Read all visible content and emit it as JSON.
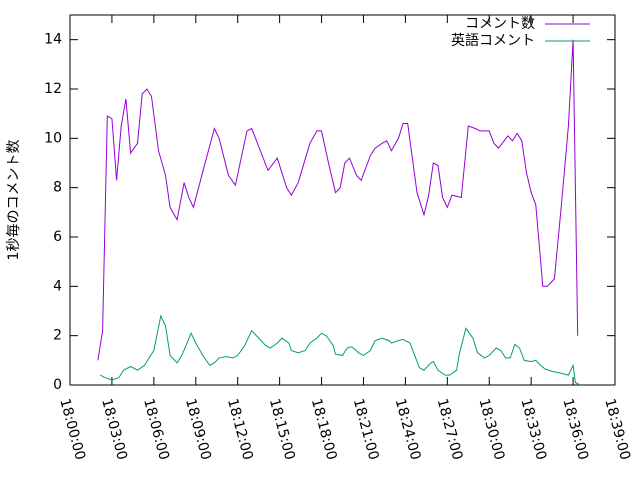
{
  "chart_data": {
    "type": "line",
    "ylabel": "1秒毎のコメント数",
    "xlim": [
      "18:00:00",
      "18:39:00"
    ],
    "xticks": [
      "18:00:00",
      "18:03:00",
      "18:06:00",
      "18:09:00",
      "18:12:00",
      "18:15:00",
      "18:18:00",
      "18:21:00",
      "18:24:00",
      "18:27:00",
      "18:30:00",
      "18:33:00",
      "18:36:00",
      "18:39:00"
    ],
    "ylim": [
      0,
      15
    ],
    "yticks": [
      0,
      2,
      4,
      6,
      8,
      10,
      12,
      14
    ],
    "legend": "top-right",
    "series": [
      {
        "name": "コメント数",
        "color": "#9400d3",
        "x": [
          "18:02:00",
          "18:02:20",
          "18:02:40",
          "18:03:00",
          "18:03:20",
          "18:03:40",
          "18:04:00",
          "18:04:20",
          "18:04:50",
          "18:05:10",
          "18:05:30",
          "18:05:50",
          "18:06:20",
          "18:06:50",
          "18:07:10",
          "18:07:40",
          "18:08:10",
          "18:08:30",
          "18:08:50",
          "18:09:40",
          "18:10:20",
          "18:10:40",
          "18:11:20",
          "18:11:50",
          "18:12:40",
          "18:13:00",
          "18:14:10",
          "18:14:50",
          "18:15:30",
          "18:15:50",
          "18:16:20",
          "18:17:10",
          "18:17:40",
          "18:18:00",
          "18:18:30",
          "18:19:00",
          "18:19:20",
          "18:19:40",
          "18:20:00",
          "18:20:30",
          "18:20:50",
          "18:21:30",
          "18:21:50",
          "18:22:20",
          "18:22:40",
          "18:23:00",
          "18:23:30",
          "18:23:50",
          "18:24:10",
          "18:24:50",
          "18:25:20",
          "18:25:40",
          "18:26:00",
          "18:26:20",
          "18:26:40",
          "18:27:00",
          "18:27:20",
          "18:28:00",
          "18:28:30",
          "18:29:00",
          "18:29:20",
          "18:30:00",
          "18:30:20",
          "18:30:40",
          "18:31:20",
          "18:31:40",
          "18:32:00",
          "18:32:20",
          "18:32:40",
          "18:33:00",
          "18:33:20",
          "18:33:50",
          "18:34:10",
          "18:34:40",
          "18:35:10",
          "18:35:40",
          "18:36:00",
          "18:36:20"
        ],
        "values": [
          1.0,
          2.2,
          10.9,
          10.8,
          8.3,
          10.5,
          11.6,
          9.4,
          9.8,
          11.8,
          12.0,
          11.7,
          9.5,
          8.5,
          7.2,
          6.7,
          8.2,
          7.6,
          7.2,
          9.0,
          10.4,
          10.0,
          8.5,
          8.1,
          10.3,
          10.4,
          8.7,
          9.2,
          8.0,
          7.7,
          8.2,
          9.8,
          10.3,
          10.3,
          9.0,
          7.8,
          8.0,
          9.0,
          9.2,
          8.5,
          8.3,
          9.3,
          9.6,
          9.8,
          9.9,
          9.5,
          10.0,
          10.6,
          10.6,
          7.8,
          6.9,
          7.7,
          9.0,
          8.9,
          7.6,
          7.2,
          7.7,
          7.6,
          10.5,
          10.4,
          10.3,
          10.3,
          9.8,
          9.6,
          10.1,
          9.9,
          10.2,
          9.9,
          8.6,
          7.8,
          7.3,
          4.0,
          4.0,
          4.3,
          7.3,
          10.5,
          14.0,
          2.0
        ]
      },
      {
        "name": "英語コメント",
        "color": "#009e73",
        "x": [
          "18:02:10",
          "18:02:30",
          "18:03:00",
          "18:03:30",
          "18:03:50",
          "18:04:20",
          "18:04:50",
          "18:05:20",
          "18:06:00",
          "18:06:30",
          "18:06:50",
          "18:07:10",
          "18:07:40",
          "18:08:00",
          "18:08:40",
          "18:09:00",
          "18:09:30",
          "18:10:00",
          "18:10:20",
          "18:10:40",
          "18:11:10",
          "18:11:40",
          "18:12:00",
          "18:12:30",
          "18:13:00",
          "18:13:30",
          "18:14:00",
          "18:14:20",
          "18:14:50",
          "18:15:10",
          "18:15:40",
          "18:15:50",
          "18:16:20",
          "18:16:50",
          "18:17:10",
          "18:17:40",
          "18:18:00",
          "18:18:20",
          "18:18:50",
          "18:19:00",
          "18:19:30",
          "18:19:50",
          "18:20:10",
          "18:20:40",
          "18:21:00",
          "18:21:30",
          "18:21:50",
          "18:22:20",
          "18:22:50",
          "18:23:00",
          "18:23:30",
          "18:23:50",
          "18:24:20",
          "18:24:40",
          "18:25:00",
          "18:25:20",
          "18:25:50",
          "18:26:00",
          "18:26:20",
          "18:26:50",
          "18:27:10",
          "18:27:40",
          "18:27:50",
          "18:28:20",
          "18:28:50",
          "18:29:10",
          "18:29:40",
          "18:30:00",
          "18:30:30",
          "18:30:50",
          "18:31:10",
          "18:31:30",
          "18:31:50",
          "18:32:10",
          "18:32:30",
          "18:33:00",
          "18:33:20",
          "18:33:40",
          "18:34:00",
          "18:34:30",
          "18:35:00",
          "18:35:20",
          "18:35:40",
          "18:36:00",
          "18:36:10",
          "18:36:30"
        ],
        "values": [
          0.4,
          0.3,
          0.2,
          0.3,
          0.6,
          0.75,
          0.6,
          0.8,
          1.4,
          2.8,
          2.4,
          1.2,
          0.9,
          1.2,
          2.1,
          1.7,
          1.2,
          0.8,
          0.9,
          1.1,
          1.15,
          1.1,
          1.2,
          1.6,
          2.2,
          1.9,
          1.6,
          1.5,
          1.7,
          1.9,
          1.7,
          1.4,
          1.3,
          1.4,
          1.7,
          1.9,
          2.1,
          2.0,
          1.6,
          1.25,
          1.2,
          1.5,
          1.55,
          1.3,
          1.2,
          1.4,
          1.8,
          1.9,
          1.8,
          1.7,
          1.8,
          1.85,
          1.7,
          1.2,
          0.7,
          0.6,
          0.9,
          0.95,
          0.6,
          0.4,
          0.4,
          0.6,
          1.2,
          2.3,
          1.9,
          1.3,
          1.1,
          1.2,
          1.5,
          1.4,
          1.1,
          1.1,
          1.65,
          1.5,
          1.0,
          0.95,
          1.0,
          0.8,
          0.65,
          0.55,
          0.5,
          0.45,
          0.4,
          0.8,
          0.1,
          0
        ]
      }
    ]
  }
}
